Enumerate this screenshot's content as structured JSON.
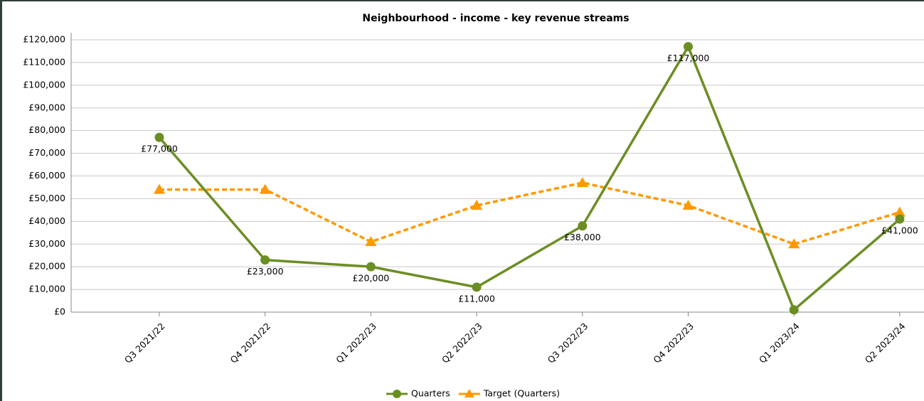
{
  "chart_data": {
    "type": "line",
    "title": "Neighbourhood - income - key revenue streams",
    "categories": [
      "Q3 2021/22",
      "Q4 2021/22",
      "Q1 2022/23",
      "Q2 2022/23",
      "Q3 2022/23",
      "Q4 2022/23",
      "Q1 2023/24",
      "Q2 2023/24"
    ],
    "series": [
      {
        "name": "Quarters",
        "color": "#6b8e23",
        "marker": "circle",
        "dashed": false,
        "values": [
          77000,
          23000,
          20000,
          11000,
          38000,
          117000,
          1000,
          41000
        ],
        "value_labels": [
          "£77,000",
          "£23,000",
          "£20,000",
          "£11,000",
          "£38,000",
          "£117,000",
          null,
          "£41,000"
        ]
      },
      {
        "name": "Target (Quarters)",
        "color": "#ff9900",
        "marker": "triangle",
        "dashed": true,
        "values": [
          54000,
          54000,
          31000,
          47000,
          57000,
          47000,
          30000,
          44000
        ]
      }
    ],
    "ylim": [
      0,
      120000
    ],
    "yticks": [
      {
        "value": 0,
        "label": "£0"
      },
      {
        "value": 10000,
        "label": "£10,000"
      },
      {
        "value": 20000,
        "label": "£20,000"
      },
      {
        "value": 30000,
        "label": "£30,000"
      },
      {
        "value": 40000,
        "label": "£40,000"
      },
      {
        "value": 50000,
        "label": "£50,000"
      },
      {
        "value": 60000,
        "label": "£60,000"
      },
      {
        "value": 70000,
        "label": "£70,000"
      },
      {
        "value": 80000,
        "label": "£80,000"
      },
      {
        "value": 90000,
        "label": "£90,000"
      },
      {
        "value": 100000,
        "label": "£100,000"
      },
      {
        "value": 110000,
        "label": "£110,000"
      },
      {
        "value": 120000,
        "label": "£120,000"
      }
    ],
    "grid": true,
    "legend": "bottom"
  }
}
